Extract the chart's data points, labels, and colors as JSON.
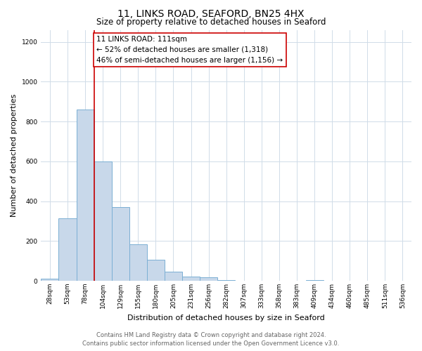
{
  "title1": "11, LINKS ROAD, SEAFORD, BN25 4HX",
  "title2": "Size of property relative to detached houses in Seaford",
  "xlabel": "Distribution of detached houses by size in Seaford",
  "ylabel": "Number of detached properties",
  "bin_labels": [
    "28sqm",
    "53sqm",
    "78sqm",
    "104sqm",
    "129sqm",
    "155sqm",
    "180sqm",
    "205sqm",
    "231sqm",
    "256sqm",
    "282sqm",
    "307sqm",
    "333sqm",
    "358sqm",
    "383sqm",
    "409sqm",
    "434sqm",
    "460sqm",
    "485sqm",
    "511sqm",
    "536sqm"
  ],
  "bar_values": [
    10,
    315,
    860,
    600,
    370,
    185,
    105,
    45,
    20,
    18,
    5,
    0,
    0,
    0,
    0,
    5,
    0,
    0,
    0,
    0,
    0
  ],
  "bar_color": "#c8d8ea",
  "bar_edge_color": "#7bafd4",
  "property_line_x": 3,
  "property_line_color": "#cc0000",
  "ylim": [
    0,
    1260
  ],
  "yticks": [
    0,
    200,
    400,
    600,
    800,
    1000,
    1200
  ],
  "annotation_text": "11 LINKS ROAD: 111sqm\n← 52% of detached houses are smaller (1,318)\n46% of semi-detached houses are larger (1,156) →",
  "annotation_box_color": "#cc0000",
  "footer_line1": "Contains HM Land Registry data © Crown copyright and database right 2024.",
  "footer_line2": "Contains public sector information licensed under the Open Government Licence v3.0.",
  "grid_color": "#d0dce8",
  "background_color": "#ffffff",
  "title1_fontsize": 10,
  "title2_fontsize": 8.5,
  "ylabel_fontsize": 8,
  "xlabel_fontsize": 8,
  "tick_fontsize": 6.5,
  "ann_fontsize": 7.5,
  "footer_fontsize": 6
}
